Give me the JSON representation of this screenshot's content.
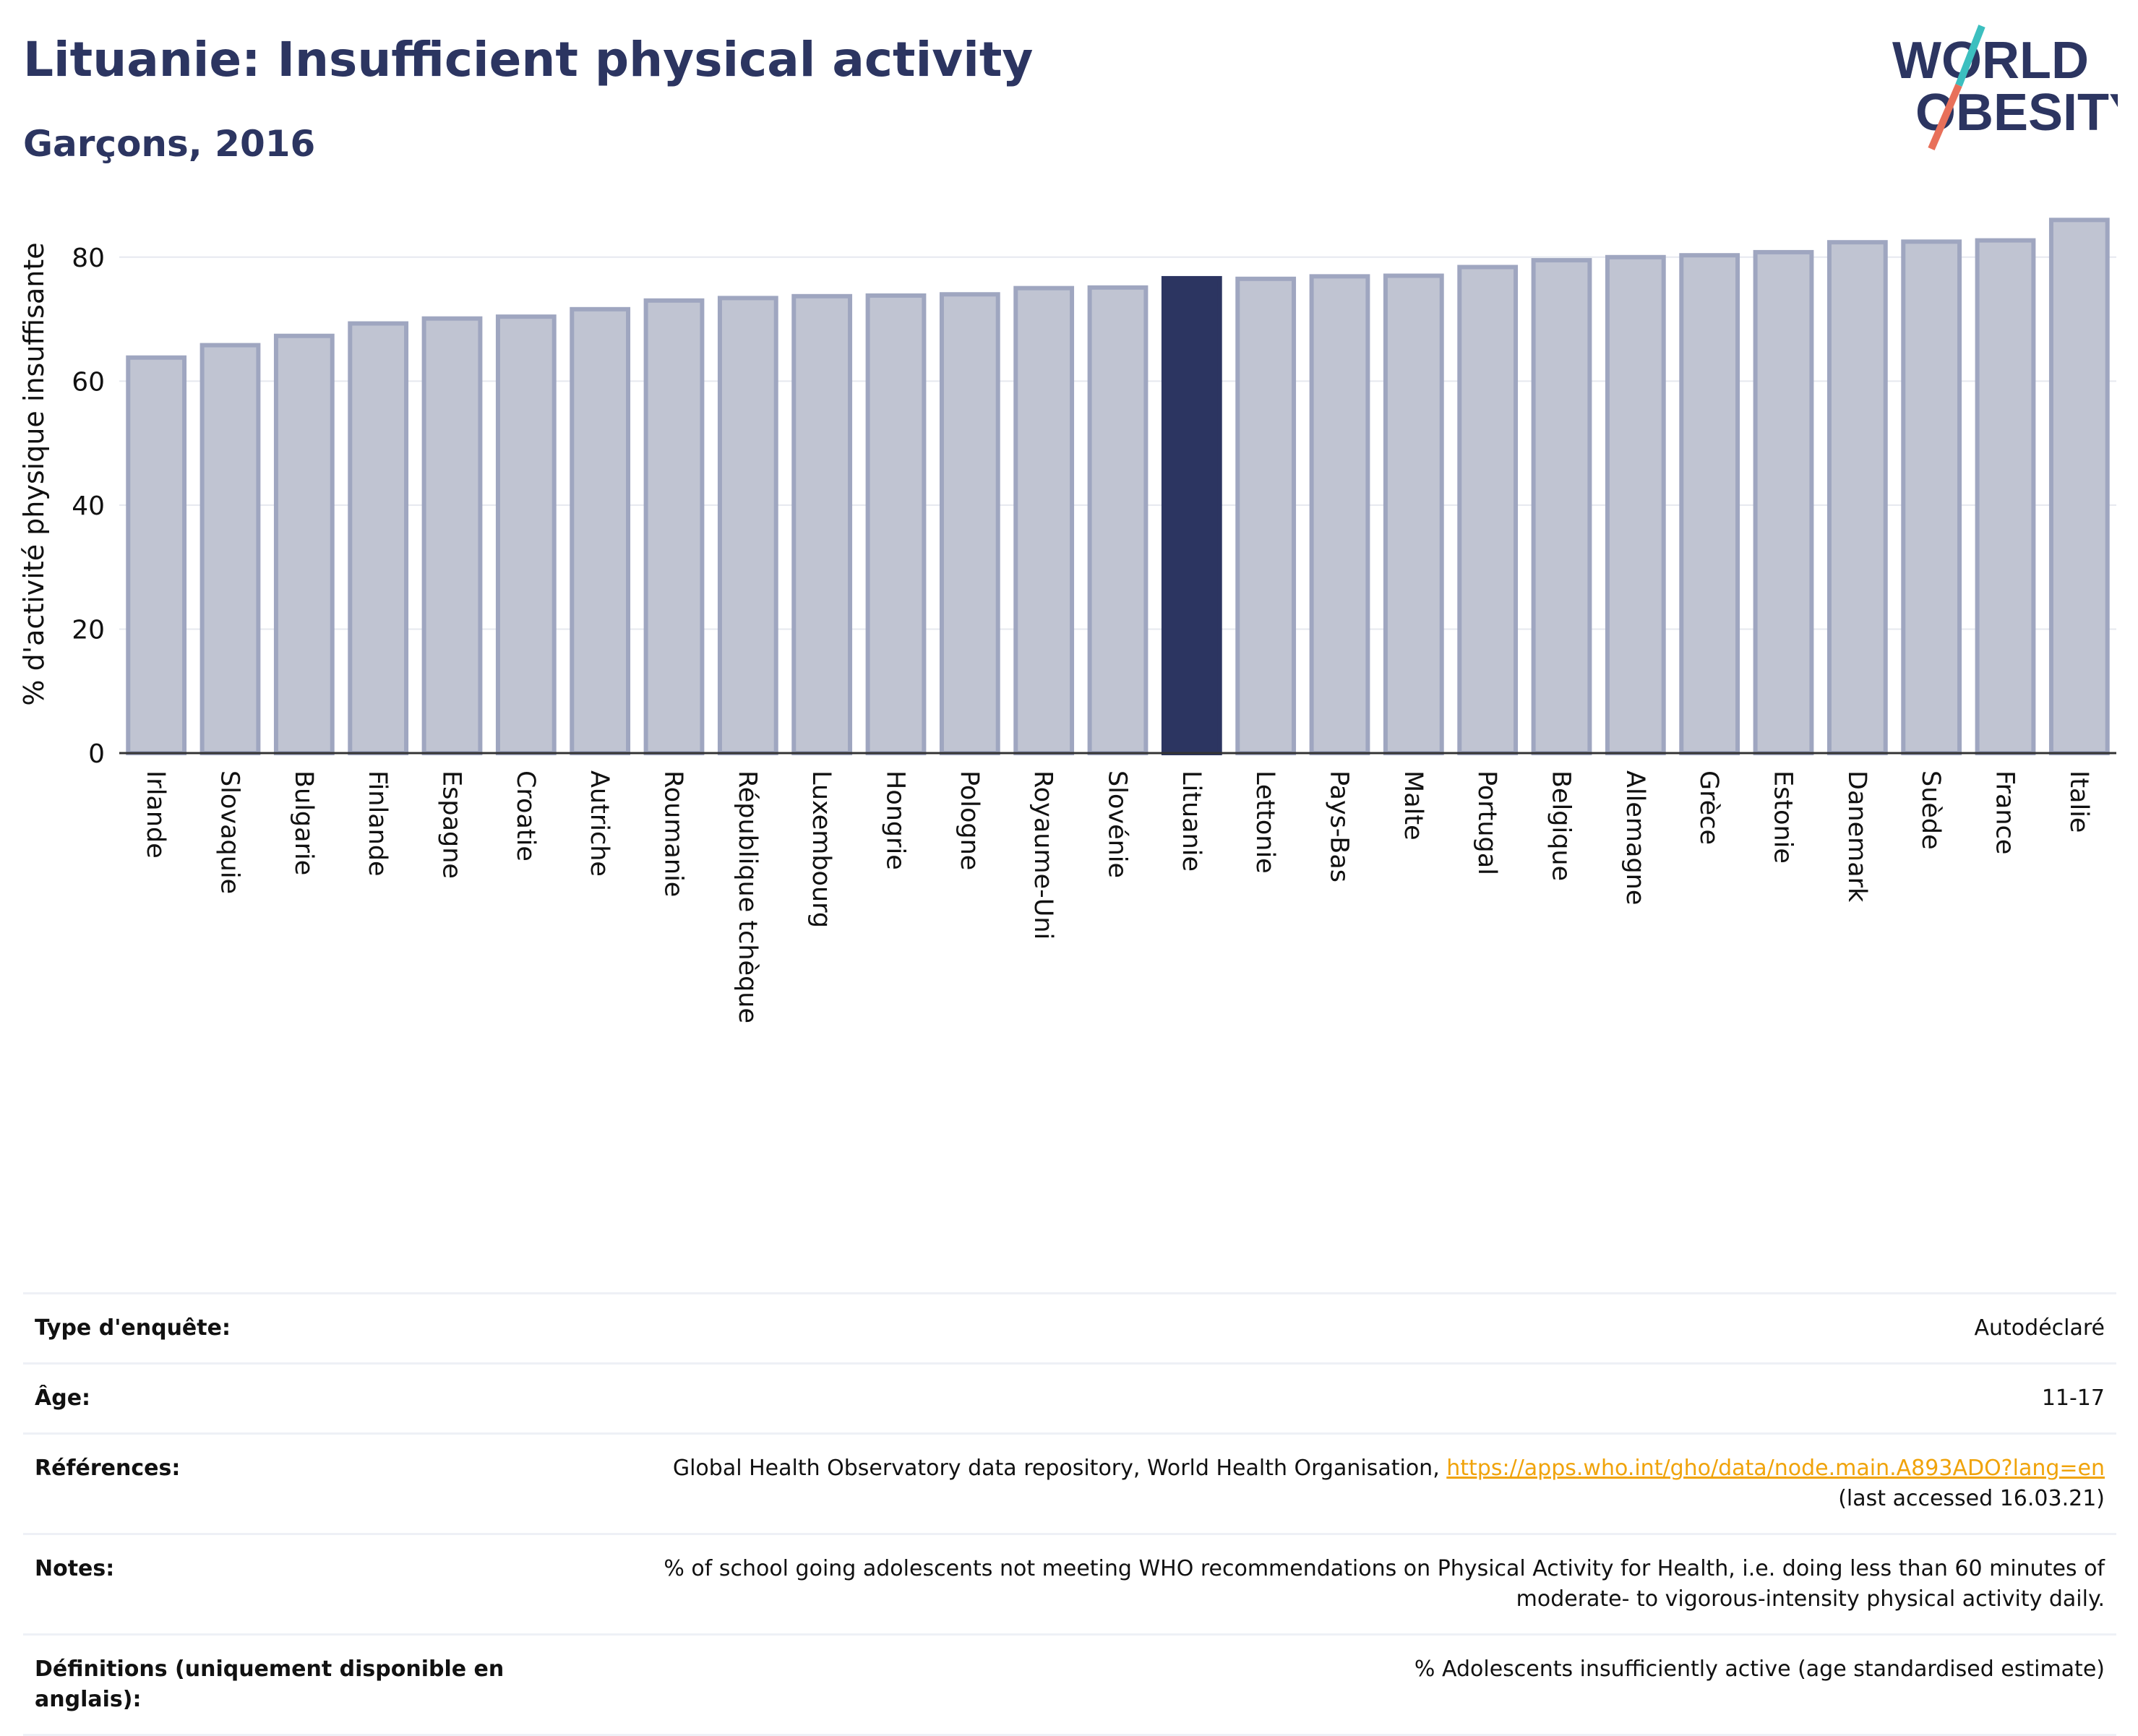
{
  "header": {
    "title": "Lituanie: Insufficient physical activity",
    "subtitle": "Garçons, 2016"
  },
  "logo": {
    "line1": "WORLD",
    "line2": "OBESITY",
    "colors": {
      "text": "#2c3561",
      "slash_top": "#3cbfbf",
      "slash_bottom": "#e8705a"
    }
  },
  "chart_data": {
    "type": "bar",
    "ylabel": "% d'activité physique insuffisante",
    "ylim": [
      0,
      90
    ],
    "yticks": [
      0,
      20,
      40,
      60,
      80
    ],
    "grid": true,
    "highlight": "Lituanie",
    "colors": {
      "bar": "#c0c4d2",
      "bar_edge": "#9fa6c0",
      "highlight": "#2c3561"
    },
    "categories": [
      "Irlande",
      "Slovaquie",
      "Bulgarie",
      "Finlande",
      "Espagne",
      "Croatie",
      "Autriche",
      "Roumanie",
      "République tchèque",
      "Luxembourg",
      "Hongrie",
      "Pologne",
      "Royaume-Uni",
      "Slovénie",
      "Lituanie",
      "Lettonie",
      "Pays-Bas",
      "Malte",
      "Portugal",
      "Belgique",
      "Allemagne",
      "Grèce",
      "Estonie",
      "Danemark",
      "Suède",
      "France",
      "Italie"
    ],
    "values": [
      63.8,
      65.8,
      67.3,
      69.3,
      70.1,
      70.4,
      71.6,
      73.0,
      73.4,
      73.7,
      73.8,
      74.0,
      75.0,
      75.1,
      76.6,
      76.5,
      76.9,
      77.0,
      78.4,
      79.5,
      80.0,
      80.3,
      80.8,
      82.4,
      82.5,
      82.7,
      86.0
    ]
  },
  "info": {
    "survey_label": "Type d'enquête:",
    "survey_value": "Autodéclaré",
    "age_label": "Âge:",
    "age_value": "11-17",
    "references_label": "Références:",
    "references_text": "Global Health Observatory data repository, World Health Organisation, ",
    "references_link": "https://apps.who.int/gho/data/node.main.A893ADO?lang=en",
    "references_accessed": "(last accessed 16.03.21)",
    "notes_label": "Notes:",
    "notes_value": "% of school going adolescents not meeting WHO recommendations on Physical Activity for Health, i.e. doing less than 60 minutes of moderate- to vigorous-intensity physical activity daily.",
    "definitions_label": "Définitions (uniquement disponible en anglais):",
    "definitions_value": "% Adolescents insufficiently active (age standardised estimate)"
  }
}
